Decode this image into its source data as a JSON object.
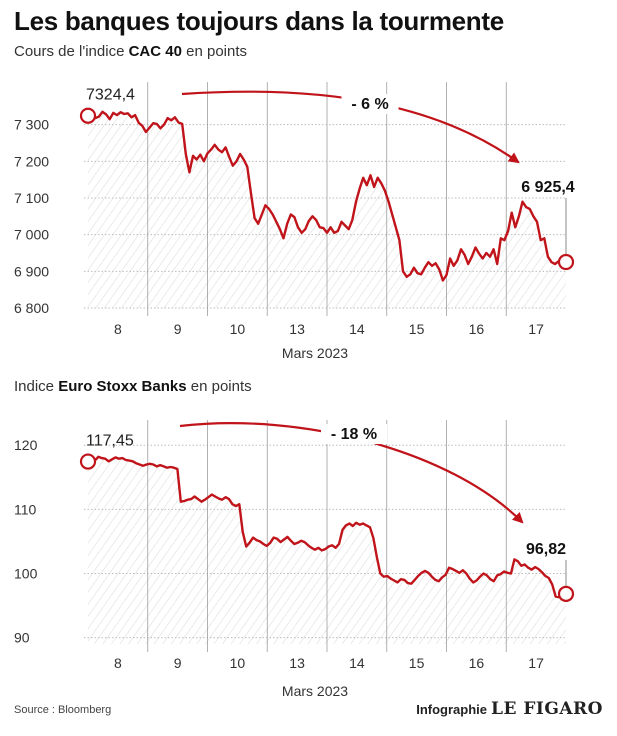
{
  "title": "Les banques toujours dans la tourmente",
  "source": "Source : Bloomberg",
  "credit_prefix": "Infographie",
  "credit_brand": "LE FIGARO",
  "colors": {
    "line": "#c0141a",
    "grid": "#bdbdbd",
    "hatch": "#d8d8d8",
    "text": "#222222"
  },
  "chart_data": [
    {
      "type": "line",
      "subtitle_pre": "Cours de l'indice ",
      "subtitle_bold": "CAC 40",
      "subtitle_post": " en points",
      "xlabel": "Mars 2023",
      "days": [
        "8",
        "9",
        "10",
        "13",
        "14",
        "15",
        "16",
        "17"
      ],
      "ylim": [
        6800,
        7400
      ],
      "yticks": [
        6800,
        6900,
        7000,
        7100,
        7200,
        7300
      ],
      "ytick_labels": [
        "6 800",
        "6 900",
        "7 000",
        "7 100",
        "7 200",
        "7 300"
      ],
      "start_label": "7324,4",
      "end_label": "6 925,4",
      "change_label": "- 6 %",
      "series": [
        {
          "values": [
            7324.4,
            7330,
            7318,
            7322,
            7335,
            7328,
            7315,
            7332,
            7326,
            7334,
            7329,
            7331,
            7320,
            7326,
            7305,
            7297,
            7280,
            7292,
            7304,
            7302,
            7290,
            7300,
            7318,
            7312,
            7320,
            7306,
            7302,
            7220,
            7170,
            7215,
            7205,
            7218,
            7200,
            7222,
            7232,
            7245,
            7232,
            7225,
            7238,
            7212,
            7188,
            7200,
            7220,
            7205,
            7185,
            7112,
            7045,
            7030,
            7055,
            7080,
            7070,
            7055,
            7035,
            7015,
            6990,
            7030,
            7055,
            7048,
            7020,
            7005,
            7015,
            7038,
            7050,
            7040,
            7020,
            7018,
            7005,
            7020,
            7005,
            7010,
            7035,
            7025,
            7015,
            7040,
            7090,
            7125,
            7155,
            7135,
            7162,
            7130,
            7155,
            7140,
            7120,
            7090,
            7055,
            7020,
            6985,
            6900,
            6885,
            6892,
            6910,
            6895,
            6892,
            6910,
            6925,
            6915,
            6922,
            6905,
            6875,
            6890,
            6935,
            6915,
            6930,
            6960,
            6945,
            6920,
            6940,
            6965,
            6948,
            6935,
            6950,
            6940,
            6960,
            6920,
            6990,
            6985,
            7010,
            7060,
            7020,
            7050,
            7090,
            7075,
            7070,
            7050,
            7035,
            6985,
            6990,
            6940,
            6925,
            6920,
            6928,
            6922,
            6925.4
          ]
        }
      ]
    },
    {
      "type": "line",
      "subtitle_pre": "Indice ",
      "subtitle_bold": "Euro Stoxx Banks",
      "subtitle_post": " en points",
      "xlabel": "Mars 2023",
      "days": [
        "8",
        "9",
        "10",
        "13",
        "14",
        "15",
        "16",
        "17"
      ],
      "ylim": [
        89,
        123
      ],
      "yticks": [
        90,
        100,
        110,
        120
      ],
      "ytick_labels": [
        "90",
        "100",
        "110",
        "120"
      ],
      "start_label": "117,45",
      "end_label": "96,82",
      "change_label": "- 18 %",
      "series": [
        {
          "values": [
            117.45,
            117.8,
            117.6,
            118.2,
            118.0,
            117.9,
            117.5,
            117.8,
            118.1,
            117.9,
            118.0,
            117.7,
            117.6,
            117.5,
            117.2,
            117.0,
            116.8,
            117.0,
            117.1,
            117.0,
            116.7,
            116.9,
            116.7,
            116.5,
            116.6,
            116.5,
            116.3,
            111.2,
            111.3,
            111.5,
            111.6,
            112.0,
            111.6,
            111.2,
            111.5,
            111.9,
            112.3,
            112.0,
            111.7,
            111.5,
            111.9,
            111.6,
            110.8,
            110.5,
            110.8,
            106.5,
            104.2,
            104.8,
            105.6,
            105.2,
            105.0,
            104.6,
            104.3,
            104.8,
            105.6,
            105.4,
            104.9,
            105.3,
            105.7,
            105.1,
            104.6,
            104.8,
            105.1,
            104.9,
            104.4,
            104.0,
            103.7,
            104.0,
            103.6,
            103.8,
            104.2,
            104.4,
            104.0,
            104.6,
            106.8,
            107.5,
            107.8,
            107.4,
            107.9,
            107.6,
            107.8,
            107.5,
            107.2,
            105.5,
            102.5,
            100.0,
            99.5,
            99.6,
            99.2,
            98.9,
            98.6,
            99.1,
            99.0,
            98.5,
            98.4,
            99.0,
            99.6,
            100.1,
            100.4,
            100.1,
            99.5,
            99.0,
            98.8,
            99.4,
            99.8,
            100.9,
            100.7,
            100.4,
            100.1,
            100.5,
            100.0,
            99.2,
            98.6,
            98.9,
            99.5,
            100.0,
            99.7,
            99.1,
            98.8,
            99.7,
            99.9,
            100.3,
            100.1,
            100.0,
            102.2,
            101.9,
            101.2,
            101.4,
            100.9,
            100.6,
            101.0,
            100.7,
            100.2,
            99.6,
            99.3,
            98.3,
            96.4,
            96.3,
            96.2,
            96.82
          ]
        }
      ]
    }
  ]
}
